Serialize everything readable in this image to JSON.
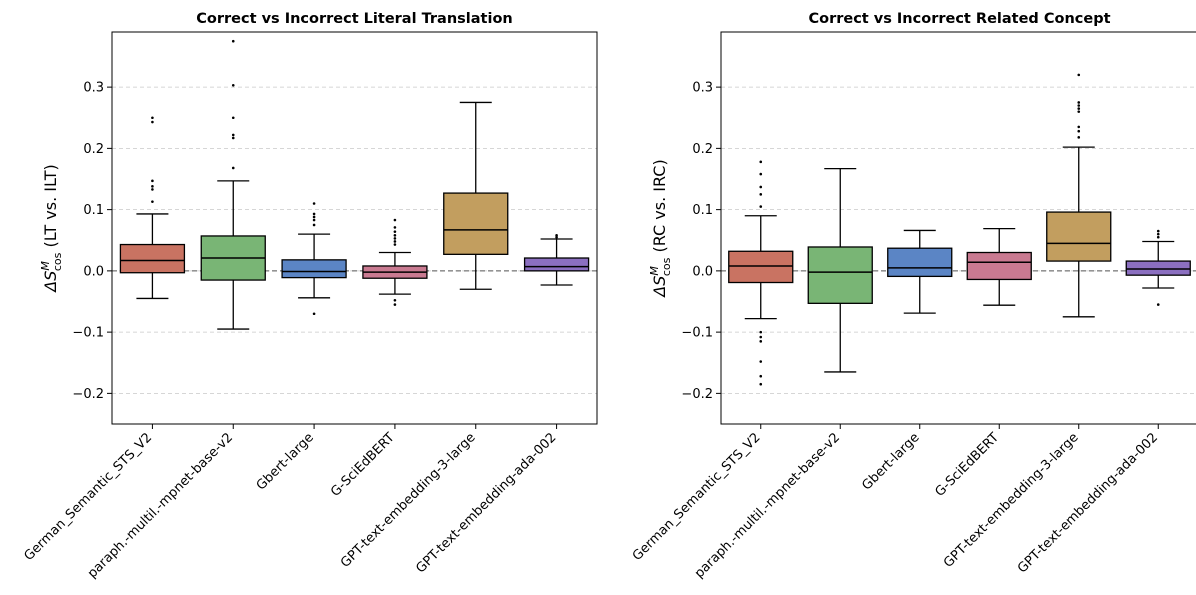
{
  "chart_data": [
    {
      "type": "box",
      "title": "Correct vs Incorrect Literal Translation",
      "ylabel": {
        "prefix": "ΔS",
        "sup": "M",
        "sub": "cos",
        "suffix": " (LT vs. ILT)"
      },
      "ylim": [
        -0.25,
        0.39
      ],
      "yticks": [
        -0.2,
        -0.1,
        0.0,
        0.1,
        0.2,
        0.3
      ],
      "grid": "y-dashed",
      "reference_line": 0.0,
      "categories": [
        "German_Semantic_STS_V2",
        "paraph.-multil.-mpnet-base-v2",
        "Gbert-large",
        "G-SciEdBERT",
        "GPT-text-embedding-3-large",
        "GPT-text-embedding-ada-002"
      ],
      "boxes": [
        {
          "whisker_low": -0.045,
          "q1": -0.003,
          "median": 0.017,
          "q3": 0.043,
          "whisker_high": 0.093,
          "outliers": [
            0.113,
            0.133,
            0.138,
            0.147,
            0.243,
            0.25
          ]
        },
        {
          "whisker_low": -0.095,
          "q1": -0.015,
          "median": 0.021,
          "q3": 0.057,
          "whisker_high": 0.147,
          "outliers": [
            0.168,
            0.217,
            0.222,
            0.25,
            0.303,
            0.375
          ]
        },
        {
          "whisker_low": -0.044,
          "q1": -0.011,
          "median": -0.001,
          "q3": 0.018,
          "whisker_high": 0.06,
          "outliers": [
            -0.07,
            0.075,
            0.083,
            0.088,
            0.093,
            0.11
          ]
        },
        {
          "whisker_low": -0.038,
          "q1": -0.012,
          "median": -0.002,
          "q3": 0.008,
          "whisker_high": 0.03,
          "outliers": [
            -0.055,
            -0.048,
            0.043,
            0.048,
            0.053,
            0.058,
            0.064,
            0.071,
            0.083
          ]
        },
        {
          "whisker_low": -0.03,
          "q1": 0.027,
          "median": 0.067,
          "q3": 0.127,
          "whisker_high": 0.275,
          "outliers": []
        },
        {
          "whisker_low": -0.023,
          "q1": 0.0,
          "median": 0.007,
          "q3": 0.021,
          "whisker_high": 0.052,
          "outliers": [
            0.055,
            0.058
          ]
        }
      ]
    },
    {
      "type": "box",
      "title": "Correct vs Incorrect Related Concept",
      "ylabel": {
        "prefix": "ΔS",
        "sup": "M",
        "sub": "cos",
        "suffix": " (RC vs. IRC)"
      },
      "ylim": [
        -0.25,
        0.39
      ],
      "yticks": [
        -0.2,
        -0.1,
        0.0,
        0.1,
        0.2,
        0.3
      ],
      "grid": "y-dashed",
      "reference_line": 0.0,
      "categories": [
        "German_Semantic_STS_V2",
        "paraph.-multil.-mpnet-base-v2",
        "Gbert-large",
        "G-SciEdBERT",
        "GPT-text-embedding-3-large",
        "GPT-text-embedding-ada-002"
      ],
      "boxes": [
        {
          "whisker_low": -0.078,
          "q1": -0.019,
          "median": 0.008,
          "q3": 0.032,
          "whisker_high": 0.09,
          "outliers": [
            -0.185,
            -0.172,
            -0.148,
            -0.115,
            -0.108,
            -0.1,
            0.105,
            0.125,
            0.137,
            0.158,
            0.178
          ]
        },
        {
          "whisker_low": -0.165,
          "q1": -0.053,
          "median": -0.002,
          "q3": 0.039,
          "whisker_high": 0.167,
          "outliers": []
        },
        {
          "whisker_low": -0.069,
          "q1": -0.009,
          "median": 0.005,
          "q3": 0.037,
          "whisker_high": 0.066,
          "outliers": []
        },
        {
          "whisker_low": -0.056,
          "q1": -0.014,
          "median": 0.014,
          "q3": 0.03,
          "whisker_high": 0.069,
          "outliers": []
        },
        {
          "whisker_low": -0.075,
          "q1": 0.016,
          "median": 0.045,
          "q3": 0.096,
          "whisker_high": 0.202,
          "outliers": [
            0.218,
            0.228,
            0.235,
            0.26,
            0.265,
            0.27,
            0.275,
            0.32
          ]
        },
        {
          "whisker_low": -0.028,
          "q1": -0.007,
          "median": 0.003,
          "q3": 0.016,
          "whisker_high": 0.048,
          "outliers": [
            -0.055,
            0.055,
            0.06,
            0.065
          ]
        }
      ]
    }
  ],
  "colors": [
    "#c97362",
    "#79b575",
    "#5b85c5",
    "#c97a91",
    "#c29e5f",
    "#8b6fc0"
  ]
}
